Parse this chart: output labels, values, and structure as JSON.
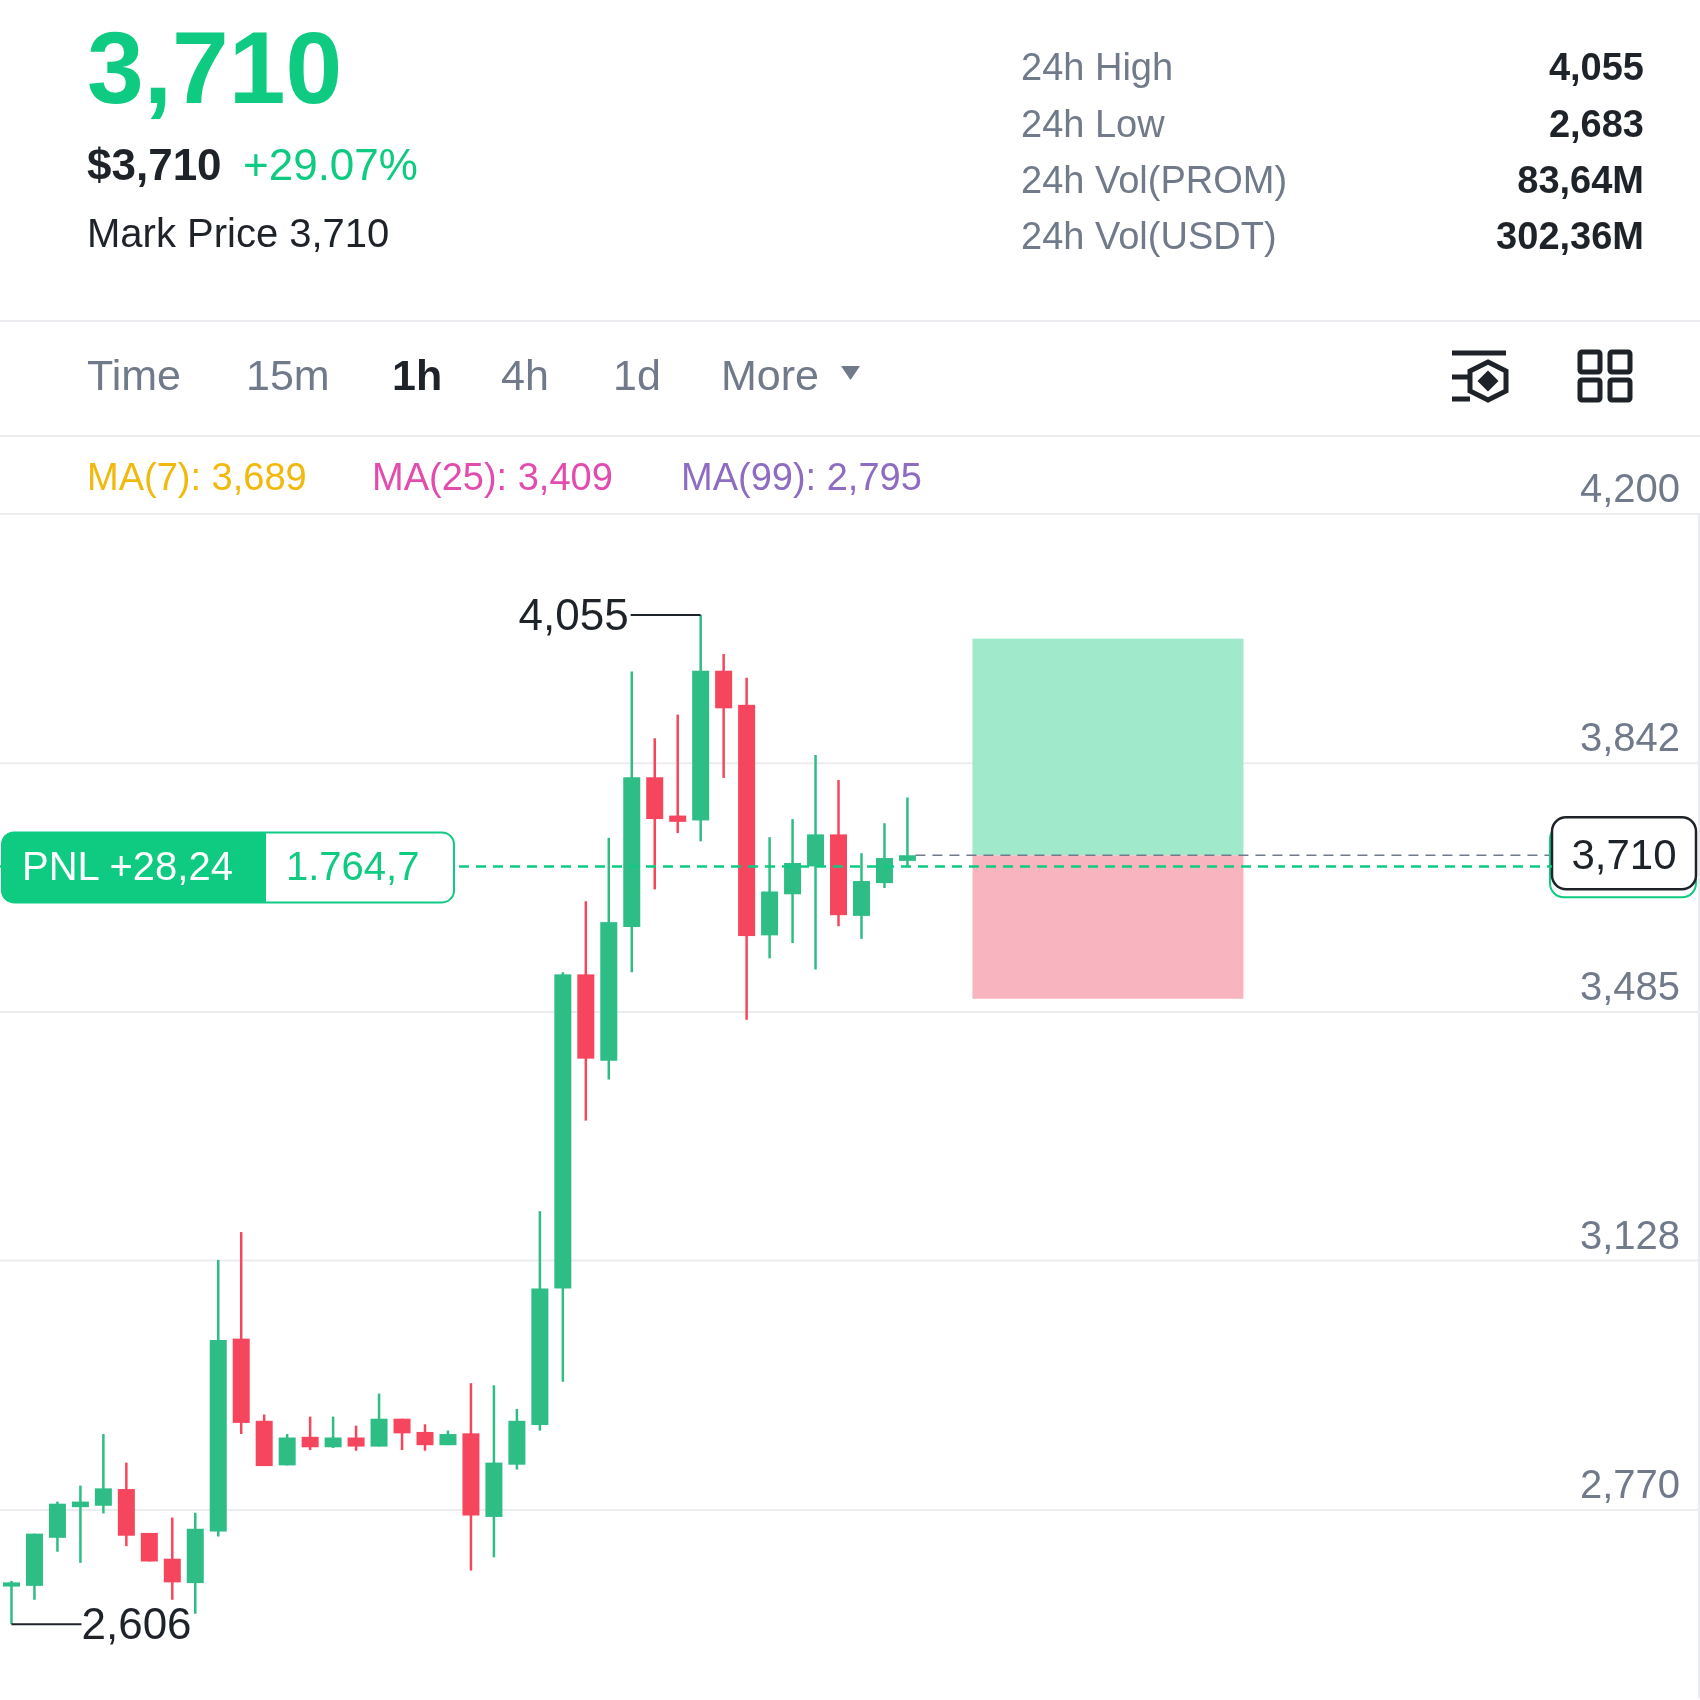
{
  "chart_data": {
    "type": "candlestick",
    "title": "3,710",
    "categories": [
      null,
      null,
      null,
      null,
      null,
      null,
      null,
      null,
      null,
      null,
      null,
      null,
      null,
      null,
      null,
      null,
      null,
      null,
      null,
      null,
      null,
      null,
      null,
      null,
      null,
      null,
      null,
      null,
      null,
      null,
      null,
      null,
      null,
      null,
      null,
      null,
      null,
      null,
      null,
      null,
      null,
      null,
      null,
      null,
      null,
      null,
      null,
      null,
      null,
      null,
      null,
      null,
      null,
      null,
      null,
      null,
      null,
      null,
      null,
      null,
      null,
      null,
      null,
      null,
      null,
      null,
      null,
      null,
      null,
      null,
      null,
      null,
      null,
      null
    ],
    "ohlc": [
      [
        2660,
        2668,
        2606,
        2666
      ],
      [
        2661,
        2736,
        2641,
        2736
      ],
      [
        2730,
        2782,
        2710,
        2779
      ],
      [
        2774,
        2805,
        2694,
        2782
      ],
      [
        2776,
        2879,
        2765,
        2801
      ],
      [
        2800,
        2838,
        2718,
        2733
      ],
      [
        2737,
        2737,
        2696,
        2696
      ],
      [
        2700,
        2759,
        2641,
        2666
      ],
      [
        2665,
        2766,
        2621,
        2743
      ],
      [
        2739,
        3129,
        2732,
        3014
      ],
      [
        3016,
        3169,
        2879,
        2895
      ],
      [
        2898,
        2907,
        2833,
        2833
      ],
      [
        2834,
        2879,
        2834,
        2874
      ],
      [
        2875,
        2904,
        2856,
        2860
      ],
      [
        2860,
        2904,
        2859,
        2874
      ],
      [
        2874,
        2891,
        2855,
        2861
      ],
      [
        2861,
        2937,
        2861,
        2901
      ],
      [
        2901,
        2901,
        2856,
        2880
      ],
      [
        2882,
        2893,
        2855,
        2863
      ],
      [
        2863,
        2884,
        2863,
        2879
      ],
      [
        2880,
        2952,
        2683,
        2762
      ],
      [
        2760,
        2949,
        2702,
        2838
      ],
      [
        2835,
        2915,
        2828,
        2898
      ],
      [
        2892,
        3199,
        2884,
        3088
      ],
      [
        3088,
        3542,
        2954,
        3539
      ],
      [
        3539,
        3644,
        3329,
        3418
      ],
      [
        3415,
        3735,
        3388,
        3614
      ],
      [
        3607,
        3974,
        3542,
        3822
      ],
      [
        3822,
        3878,
        3661,
        3762
      ],
      [
        3767,
        3912,
        3742,
        3758
      ],
      [
        3760,
        4055,
        3730,
        3975
      ],
      [
        3975,
        3999,
        3821,
        3921
      ],
      [
        3926,
        3965,
        3474,
        3594
      ],
      [
        3595,
        3736,
        3562,
        3658
      ],
      [
        3654,
        3762,
        3584,
        3699
      ],
      [
        3694,
        3854,
        3546,
        3740
      ],
      [
        3740,
        3818,
        3608,
        3624
      ],
      [
        3623,
        3713,
        3590,
        3673
      ],
      [
        3670,
        3756,
        3663,
        3706
      ],
      [
        3702,
        3793,
        3694,
        3710
      ],
      null,
      null,
      null,
      null,
      null,
      null,
      null,
      null,
      null,
      null,
      null,
      null,
      null,
      null,
      null,
      null,
      null,
      null,
      null,
      null,
      null,
      null,
      null,
      null,
      null,
      null,
      null,
      null,
      null,
      null,
      null,
      null,
      null,
      null
    ],
    "colors": [
      "#2ebd85",
      "#2ebd85",
      "#2ebd85",
      "#2ebd85",
      "#2ebd85",
      "#f6465d",
      "#f6465d",
      "#f6465d",
      "#2ebd85",
      "#2ebd85",
      "#f6465d",
      "#f6465d",
      "#2ebd85",
      "#f6465d",
      "#2ebd85",
      "#f6465d",
      "#2ebd85",
      "#f6465d",
      "#f6465d",
      "#2ebd85",
      "#f6465d",
      "#2ebd85",
      "#2ebd85",
      "#2ebd85",
      "#2ebd85",
      "#f6465d",
      "#2ebd85",
      "#2ebd85",
      "#f6465d",
      "#f6465d",
      "#2ebd85",
      "#f6465d",
      "#f6465d",
      "#2ebd85",
      "#2ebd85",
      "#2ebd85",
      "#f6465d",
      "#2ebd85",
      "#2ebd85",
      "#2ebd85",
      null,
      null,
      null,
      null,
      null,
      null,
      null,
      null,
      null,
      null,
      null,
      null,
      null,
      null,
      null,
      null,
      null,
      null,
      null,
      null,
      null,
      null,
      null,
      null,
      null,
      null,
      null,
      null,
      null,
      null,
      null,
      null,
      null,
      null
    ],
    "ylim": [
      2500,
      4200
    ],
    "yticks": [
      {
        "value": 4200,
        "label": "4,200"
      },
      {
        "value": 3842,
        "label": "3,842"
      },
      {
        "value": 3485,
        "label": "3,485"
      },
      {
        "value": 3128,
        "label": "3,128"
      },
      {
        "value": 2770,
        "label": "2,770"
      }
    ],
    "grid": "y",
    "tick_labels": "y",
    "ref_lines": [
      {
        "axis": "y",
        "value": 3710,
        "label": "3,710",
        "color": "#707a8a",
        "line_style": "dashed"
      },
      {
        "axis": "y",
        "value": 3694,
        "label": "PNL +28,24",
        "color": "#0ecb81",
        "line_style": "dashed"
      }
    ],
    "bands": [
      {
        "axis": "y",
        "from": 3710,
        "to": 4021,
        "color": "#a0e9cb"
      },
      {
        "axis": "y",
        "from": 3504,
        "to": 3710,
        "color": "#f9b5bf"
      }
    ],
    "annotations": [
      "$3,710",
      "+29.07%",
      "Mark Price 3,710",
      "24h High",
      "4,055",
      "24h Low",
      "2,683",
      "24h Vol(PROM)",
      "83,64M",
      "24h Vol(USDT)",
      "302,36M",
      "Time",
      "15m",
      "1h",
      "4h",
      "1d",
      "More",
      "MA(7): 3,689",
      "MA(25): 3,409",
      "MA(99): 2,795",
      "4,055",
      "2,606",
      {
        "text": "1.764,7",
        "y": 3694
      }
    ]
  }
}
